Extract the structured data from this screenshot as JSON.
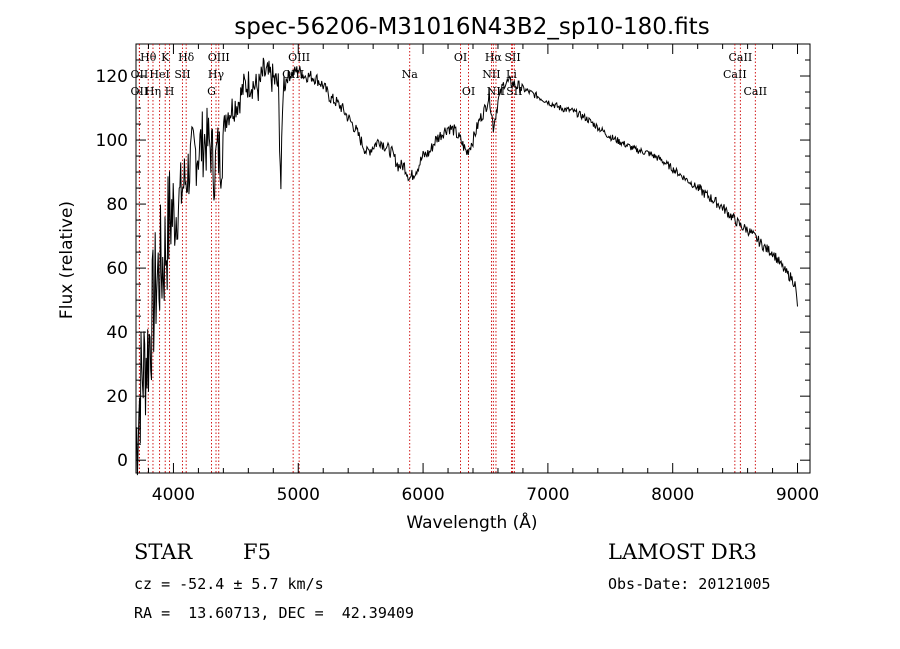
{
  "chart_data": {
    "type": "line",
    "title": "spec-56206-M31016N43B2_sp10-180.fits",
    "xlabel": "Wavelength (Å)",
    "ylabel": "Flux (relative)",
    "xlim": [
      3700,
      9100
    ],
    "ylim": [
      -4,
      130
    ],
    "xticks": [
      4000,
      5000,
      6000,
      7000,
      8000,
      9000
    ],
    "yticks": [
      0,
      20,
      40,
      60,
      80,
      100,
      120
    ],
    "series": [
      {
        "name": "flux",
        "x": [
          3700,
          3740,
          3770,
          3800,
          3830,
          3860,
          3890,
          3920,
          3950,
          3980,
          4010,
          4040,
          4070,
          4100,
          4130,
          4160,
          4200,
          4250,
          4300,
          4330,
          4350,
          4380,
          4420,
          4470,
          4520,
          4570,
          4620,
          4680,
          4720,
          4760,
          4800,
          4840,
          4861,
          4880,
          4920,
          4960,
          5000,
          5050,
          5100,
          5150,
          5200,
          5260,
          5300,
          5350,
          5400,
          5450,
          5500,
          5550,
          5600,
          5650,
          5700,
          5750,
          5800,
          5850,
          5893,
          5950,
          6000,
          6050,
          6100,
          6150,
          6200,
          6250,
          6300,
          6350,
          6400,
          6450,
          6500,
          6530,
          6563,
          6600,
          6650,
          6700,
          6750,
          6800,
          6850,
          6900,
          6950,
          7000,
          7100,
          7200,
          7300,
          7400,
          7500,
          7600,
          7700,
          7800,
          7900,
          8000,
          8100,
          8200,
          8300,
          8400,
          8500,
          8550,
          8600,
          8650,
          8700,
          8750,
          8800,
          8850,
          8900,
          8950,
          8980,
          9000
        ],
        "y": [
          5,
          25,
          30,
          35,
          45,
          55,
          60,
          62,
          70,
          78,
          75,
          80,
          85,
          88,
          92,
          95,
          97,
          100,
          98,
          90,
          96,
          95,
          108,
          110,
          112,
          117,
          118,
          116,
          121,
          120,
          119,
          117,
          85,
          118,
          120,
          121,
          122,
          120,
          120,
          119,
          117,
          113,
          112,
          110,
          107,
          104,
          100,
          96,
          98,
          100,
          98,
          96,
          92,
          92,
          88,
          91,
          95,
          96,
          100,
          102,
          104,
          103,
          100,
          96,
          100,
          106,
          110,
          114,
          104,
          112,
          118,
          118,
          117,
          116,
          115,
          114,
          113,
          112,
          110,
          109,
          107,
          104,
          101,
          99,
          97,
          96,
          94,
          91,
          88,
          85,
          82,
          79,
          75,
          73,
          72,
          70,
          68,
          66,
          65,
          62,
          59,
          57,
          55,
          48
        ]
      }
    ],
    "lines": [
      {
        "label": "Hθ",
        "wl": 3798,
        "row": 1
      },
      {
        "label": "OII",
        "wl": 3727,
        "row": 2
      },
      {
        "label": "OII",
        "wl": 3727,
        "row": 3
      },
      {
        "label": "Hη",
        "wl": 3836,
        "row": 3
      },
      {
        "label": "K",
        "wl": 3934,
        "row": 1
      },
      {
        "label": "HeI",
        "wl": 3889,
        "row": 2
      },
      {
        "label": "SII",
        "wl": 4072,
        "row": 2
      },
      {
        "label": "H",
        "wl": 3969,
        "row": 3
      },
      {
        "label": "Hδ",
        "wl": 4102,
        "row": 1
      },
      {
        "label": "OIII",
        "wl": 4363,
        "row": 1
      },
      {
        "label": "Hγ",
        "wl": 4341,
        "row": 2
      },
      {
        "label": "G",
        "wl": 4305,
        "row": 3
      },
      {
        "label": "OIII",
        "wl": 5007,
        "row": 1
      },
      {
        "label": "OIII",
        "wl": 4959,
        "row": 2
      },
      {
        "label": "Na",
        "wl": 5893,
        "row": 2
      },
      {
        "label": "OI",
        "wl": 6300,
        "row": 1
      },
      {
        "label": "OI",
        "wl": 6364,
        "row": 3
      },
      {
        "label": "Hα",
        "wl": 6563,
        "row": 1
      },
      {
        "label": "SII",
        "wl": 6717,
        "row": 1
      },
      {
        "label": "NII",
        "wl": 6548,
        "row": 2
      },
      {
        "label": "Li",
        "wl": 6708,
        "row": 2
      },
      {
        "label": "NII",
        "wl": 6584,
        "row": 3
      },
      {
        "label": "SII",
        "wl": 6731,
        "row": 3
      },
      {
        "label": "CaII",
        "wl": 8542,
        "row": 1
      },
      {
        "label": "CaII",
        "wl": 8498,
        "row": 2
      },
      {
        "label": "CaII",
        "wl": 8662,
        "row": 3
      }
    ],
    "line_color": "#cc0000",
    "spectrum_color": "#000000"
  },
  "info": {
    "class": "STAR",
    "subclass": "F5",
    "survey": "LAMOST DR3",
    "cz": "cz = -52.4 ± 5.7 km/s",
    "obs_date": "Obs-Date: 20121005",
    "coords": "RA =  13.60713, DEC =  42.39409"
  }
}
